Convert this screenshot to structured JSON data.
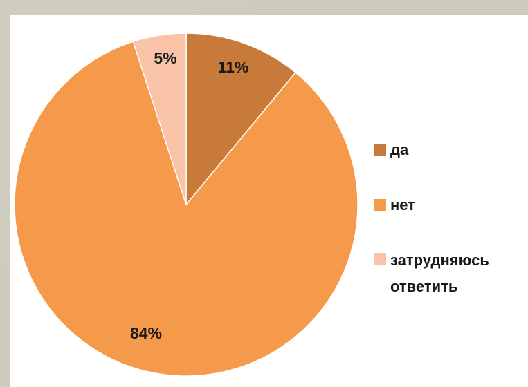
{
  "chart_data": {
    "type": "pie",
    "title": "",
    "categories": [
      "да",
      "нет",
      "затрудняюсь ответить"
    ],
    "values": [
      11,
      84,
      5
    ],
    "value_labels": [
      "11%",
      "84%",
      "5%"
    ],
    "colors": [
      "#c87a3a",
      "#f5994a",
      "#f8c3a6"
    ],
    "legend_position": "right",
    "start_angle": "12 o'clock",
    "direction": "clockwise"
  }
}
